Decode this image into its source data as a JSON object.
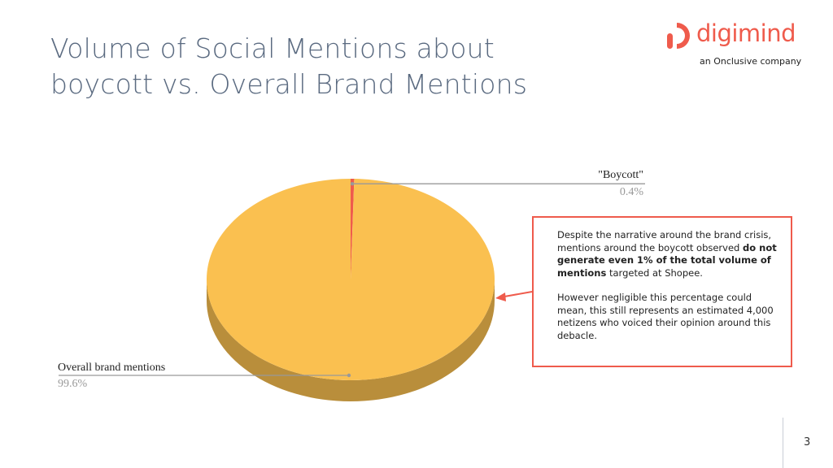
{
  "slide": {
    "title": "Volume of Social Mentions about boycott vs. Overall Brand Mentions",
    "page_number": "3"
  },
  "logo": {
    "wordmark": "digimind",
    "tagline": "an Onclusive company",
    "icon": "digimind-d-logo-icon",
    "color": "#ef5b4c"
  },
  "callout": {
    "para1_a": "Despite the narrative around the brand crisis, mentions around the boycott observed ",
    "para1_bold": "do not generate even 1% of the total volume of mentions",
    "para1_b": " targeted at Shopee.",
    "para2": "However negligible this percentage could mean, this still represents an estimated 4,000 netizens who voiced their opinion around this debacle.",
    "border_color": "#ef5b4c"
  },
  "chart_data": {
    "type": "pie",
    "style": "3d",
    "slices": [
      {
        "label": "\"Boycott\"",
        "value": 0.4,
        "value_label": "0.4%",
        "color": "#ef5b4c"
      },
      {
        "label": "Overall brand mentions",
        "value": 99.6,
        "value_label": "99.6%",
        "color": "#fac050"
      }
    ]
  }
}
